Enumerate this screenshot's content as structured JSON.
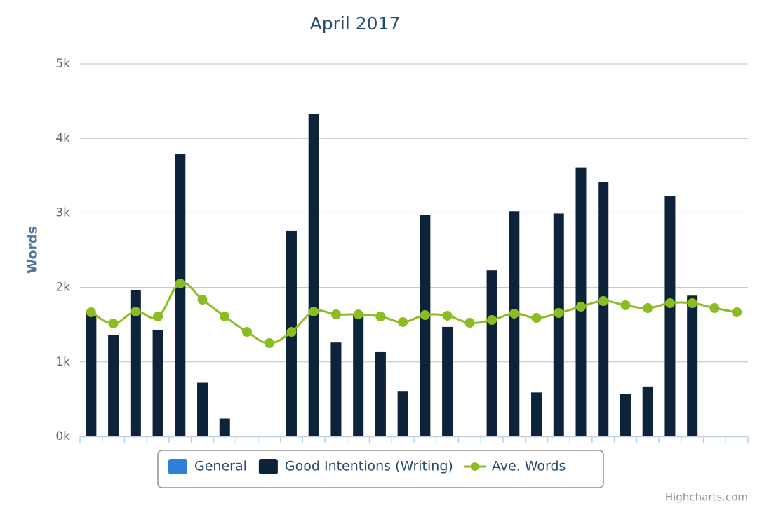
{
  "chart_data": {
    "type": "bar-line",
    "title": "April 2017",
    "y_label": "Words",
    "credits": "Highcharts.com",
    "categories": [
      null,
      null,
      null,
      null,
      null,
      null,
      null,
      null,
      null,
      null,
      null,
      null,
      null,
      null,
      null,
      null,
      null,
      null,
      null,
      null,
      null,
      null,
      null,
      null,
      null,
      null,
      null,
      null,
      null,
      null
    ],
    "ylim": [
      0,
      5000
    ],
    "yticks": [
      {
        "value": 0,
        "label": "0k"
      },
      {
        "value": 1000,
        "label": "1k"
      },
      {
        "value": 2000,
        "label": "2k"
      },
      {
        "value": 3000,
        "label": "3k"
      },
      {
        "value": 4000,
        "label": "4k"
      },
      {
        "value": 5000,
        "label": "5k"
      }
    ],
    "grid": true,
    "legend": "bottom",
    "series": [
      {
        "name": "General",
        "type": "bar",
        "color": "#2f7ed8",
        "values": [
          null,
          null,
          null,
          null,
          null,
          null,
          null,
          null,
          null,
          null,
          null,
          null,
          null,
          null,
          null,
          null,
          null,
          null,
          null,
          null,
          null,
          null,
          null,
          null,
          null,
          null,
          null,
          null,
          null,
          null
        ]
      },
      {
        "name": "Good Intentions (Writing)",
        "type": "bar",
        "color": "#0d233a",
        "values": [
          1650,
          1360,
          1960,
          1430,
          3790,
          720,
          240,
          null,
          null,
          2760,
          4330,
          1260,
          1650,
          1140,
          610,
          2970,
          1470,
          null,
          2230,
          3020,
          590,
          2990,
          3610,
          3410,
          570,
          670,
          3220,
          1890,
          null,
          null
        ]
      },
      {
        "name": "Ave. Words",
        "type": "line",
        "color": "#8bbc21",
        "values": [
          1667,
          1516,
          1676,
          1610,
          2053,
          1836,
          1610,
          1403,
          1252,
          1403,
          1676,
          1638,
          1638,
          1610,
          1535,
          1629,
          1620,
          1525,
          1563,
          1648,
          1591,
          1657,
          1742,
          1817,
          1761,
          1723,
          1789,
          1789,
          1723,
          1667
        ]
      }
    ]
  }
}
